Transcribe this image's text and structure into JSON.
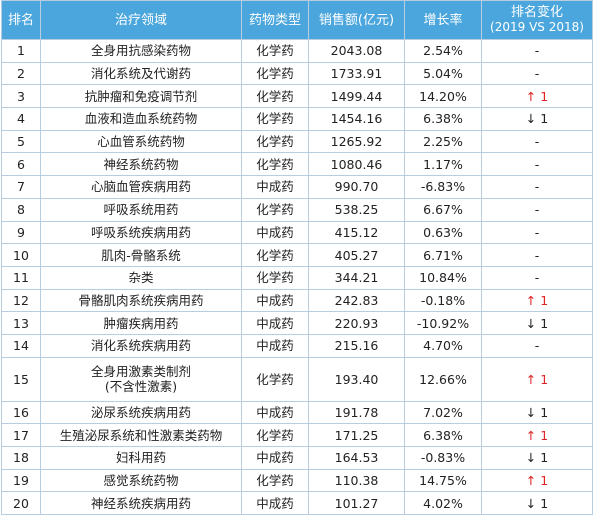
{
  "header": {
    "rank": "排名",
    "area": "治疗领域",
    "type": "药物类型",
    "sales": "销售额(亿元)",
    "growth": "增长率",
    "change": "排名变化",
    "change_sub": "(2019 VS 2018)"
  },
  "rows": [
    {
      "rank": "1",
      "area": "全身用抗感染药物",
      "type": "化学药",
      "sales": "2043.08",
      "growth": "2.54%",
      "change": "-",
      "dir": "same"
    },
    {
      "rank": "2",
      "area": "消化系统及代谢药",
      "type": "化学药",
      "sales": "1733.91",
      "growth": "5.04%",
      "change": "-",
      "dir": "same"
    },
    {
      "rank": "3",
      "area": "抗肿瘤和免疫调节剂",
      "type": "化学药",
      "sales": "1499.44",
      "growth": "14.20%",
      "change": "↑ 1",
      "dir": "up"
    },
    {
      "rank": "4",
      "area": "血液和造血系统药物",
      "type": "化学药",
      "sales": "1454.16",
      "growth": "6.38%",
      "change": "↓ 1",
      "dir": "down"
    },
    {
      "rank": "5",
      "area": "心血管系统药物",
      "type": "化学药",
      "sales": "1265.92",
      "growth": "2.25%",
      "change": "-",
      "dir": "same"
    },
    {
      "rank": "6",
      "area": "神经系统药物",
      "type": "化学药",
      "sales": "1080.46",
      "growth": "1.17%",
      "change": "-",
      "dir": "same"
    },
    {
      "rank": "7",
      "area": "心脑血管疾病用药",
      "type": "中成药",
      "sales": "990.70",
      "growth": "-6.83%",
      "change": "-",
      "dir": "same"
    },
    {
      "rank": "8",
      "area": "呼吸系统用药",
      "type": "化学药",
      "sales": "538.25",
      "growth": "6.67%",
      "change": "-",
      "dir": "same"
    },
    {
      "rank": "9",
      "area": "呼吸系统疾病用药",
      "type": "中成药",
      "sales": "415.12",
      "growth": "0.63%",
      "change": "-",
      "dir": "same"
    },
    {
      "rank": "10",
      "area": "肌肉-骨骼系统",
      "type": "化学药",
      "sales": "405.27",
      "growth": "6.71%",
      "change": "-",
      "dir": "same"
    },
    {
      "rank": "11",
      "area": "杂类",
      "type": "化学药",
      "sales": "344.21",
      "growth": "10.84%",
      "change": "-",
      "dir": "same"
    },
    {
      "rank": "12",
      "area": "骨骼肌肉系统疾病用药",
      "type": "中成药",
      "sales": "242.83",
      "growth": "-0.18%",
      "change": "↑ 1",
      "dir": "up"
    },
    {
      "rank": "13",
      "area": "肿瘤疾病用药",
      "type": "中成药",
      "sales": "220.93",
      "growth": "-10.92%",
      "change": "↓ 1",
      "dir": "down"
    },
    {
      "rank": "14",
      "area": "消化系统疾病用药",
      "type": "中成药",
      "sales": "215.16",
      "growth": "4.70%",
      "change": "-",
      "dir": "same"
    },
    {
      "rank": "15",
      "area": "全身用激素类制剂",
      "area2": "(不含性激素)",
      "type": "化学药",
      "sales": "193.40",
      "growth": "12.66%",
      "change": "↑ 1",
      "dir": "up"
    },
    {
      "rank": "16",
      "area": "泌尿系统疾病用药",
      "type": "中成药",
      "sales": "191.78",
      "growth": "7.02%",
      "change": "↓ 1",
      "dir": "down"
    },
    {
      "rank": "17",
      "area": "生殖泌尿系统和性激素类药物",
      "type": "化学药",
      "sales": "171.25",
      "growth": "6.38%",
      "change": "↑ 1",
      "dir": "up"
    },
    {
      "rank": "18",
      "area": "妇科用药",
      "type": "中成药",
      "sales": "164.53",
      "growth": "-0.83%",
      "change": "↓ 1",
      "dir": "down"
    },
    {
      "rank": "19",
      "area": "感觉系统药物",
      "type": "化学药",
      "sales": "110.38",
      "growth": "14.75%",
      "change": "↑ 1",
      "dir": "up"
    },
    {
      "rank": "20",
      "area": "神经系统疾病用药",
      "type": "中成药",
      "sales": "101.27",
      "growth": "4.02%",
      "change": "↓ 1",
      "dir": "down"
    }
  ],
  "colors": {
    "header_bg": "#4aa6dc",
    "border": "#b9cde0",
    "up": "#e02424",
    "down": "#222222"
  }
}
